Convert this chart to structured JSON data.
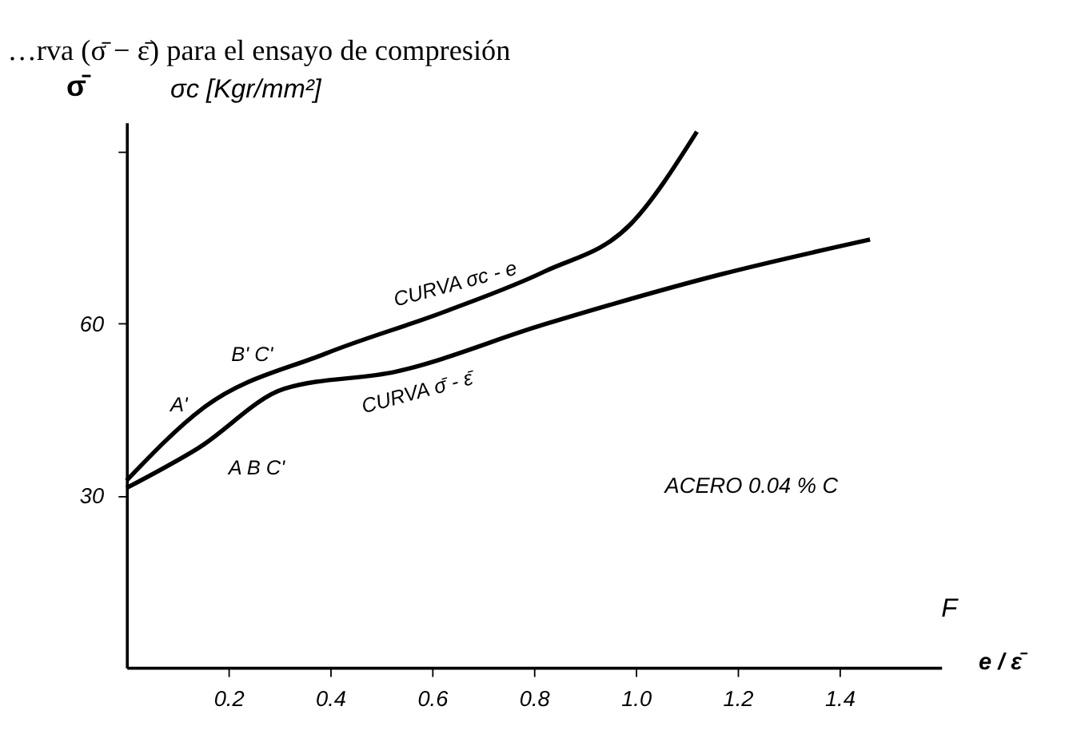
{
  "chart_data": {
    "type": "line",
    "title": "…rva (σ̄ − ε̄) para el ensayo de compresión",
    "ylabel": "σ̄",
    "xlabel": "e / ε̄",
    "xlim": [
      0,
      1.6
    ],
    "xticks": [
      0.2,
      0.4,
      0.6,
      0.8,
      {
        "value": 1,
        "label": "1.0"
      },
      1.2,
      1.4
    ],
    "ylim": [
      0,
      95
    ],
    "yticks": [
      30,
      60,
      {
        "value": 90,
        "label": null
      }
    ],
    "series": [
      {
        "name": "CURVA σc - e",
        "color": "#000000",
        "x": [
          0,
          0.15,
          0.39,
          0.63,
          0.82,
          0.99,
          1.12
        ],
        "values": [
          32.6,
          45.2,
          54.7,
          62.2,
          69,
          77.3,
          93.4
        ]
      },
      {
        "name": "CURVA σ̄ - ε̄",
        "color": "#000000",
        "x": [
          0,
          0.14,
          0.31,
          0.53,
          0.82,
          1.17,
          1.46
        ],
        "values": [
          31.3,
          38.2,
          48.6,
          51.6,
          59.8,
          68.6,
          74.6
        ]
      }
    ],
    "annotations": [
      "σc [Kgr/mm²]",
      "ACERO 0.04 % C",
      "F",
      "A'",
      "B' C'",
      "A B C'"
    ],
    "grid": false,
    "marker": "none",
    "line_style": "solid"
  }
}
